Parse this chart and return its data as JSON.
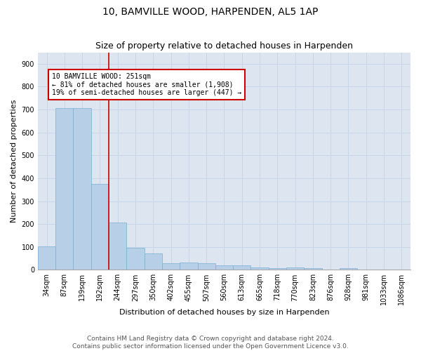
{
  "title1": "10, BAMVILLE WOOD, HARPENDEN, AL5 1AP",
  "title2": "Size of property relative to detached houses in Harpenden",
  "xlabel": "Distribution of detached houses by size in Harpenden",
  "ylabel": "Number of detached properties",
  "categories": [
    "34sqm",
    "87sqm",
    "139sqm",
    "192sqm",
    "244sqm",
    "297sqm",
    "350sqm",
    "402sqm",
    "455sqm",
    "507sqm",
    "560sqm",
    "613sqm",
    "665sqm",
    "718sqm",
    "770sqm",
    "823sqm",
    "876sqm",
    "928sqm",
    "981sqm",
    "1033sqm",
    "1086sqm"
  ],
  "values": [
    102,
    707,
    707,
    375,
    205,
    95,
    73,
    30,
    32,
    30,
    20,
    20,
    10,
    7,
    10,
    8,
    0,
    7,
    0,
    0,
    0
  ],
  "bar_color": "#b8cfe8",
  "bar_edge_color": "#7aaed4",
  "vline_x_index": 4,
  "vline_color": "#cc0000",
  "annotation_text": "10 BAMVILLE WOOD: 251sqm\n← 81% of detached houses are smaller (1,908)\n19% of semi-detached houses are larger (447) →",
  "annotation_box_color": "#cc0000",
  "annotation_box_facecolor": "white",
  "ylim": [
    0,
    950
  ],
  "yticks": [
    0,
    100,
    200,
    300,
    400,
    500,
    600,
    700,
    800,
    900
  ],
  "grid_color": "#c8d4e8",
  "background_color": "#dde6f0",
  "footer_line1": "Contains HM Land Registry data © Crown copyright and database right 2024.",
  "footer_line2": "Contains public sector information licensed under the Open Government Licence v3.0.",
  "title1_fontsize": 10,
  "title2_fontsize": 9,
  "axis_label_fontsize": 8,
  "tick_fontsize": 7,
  "footer_fontsize": 6.5
}
